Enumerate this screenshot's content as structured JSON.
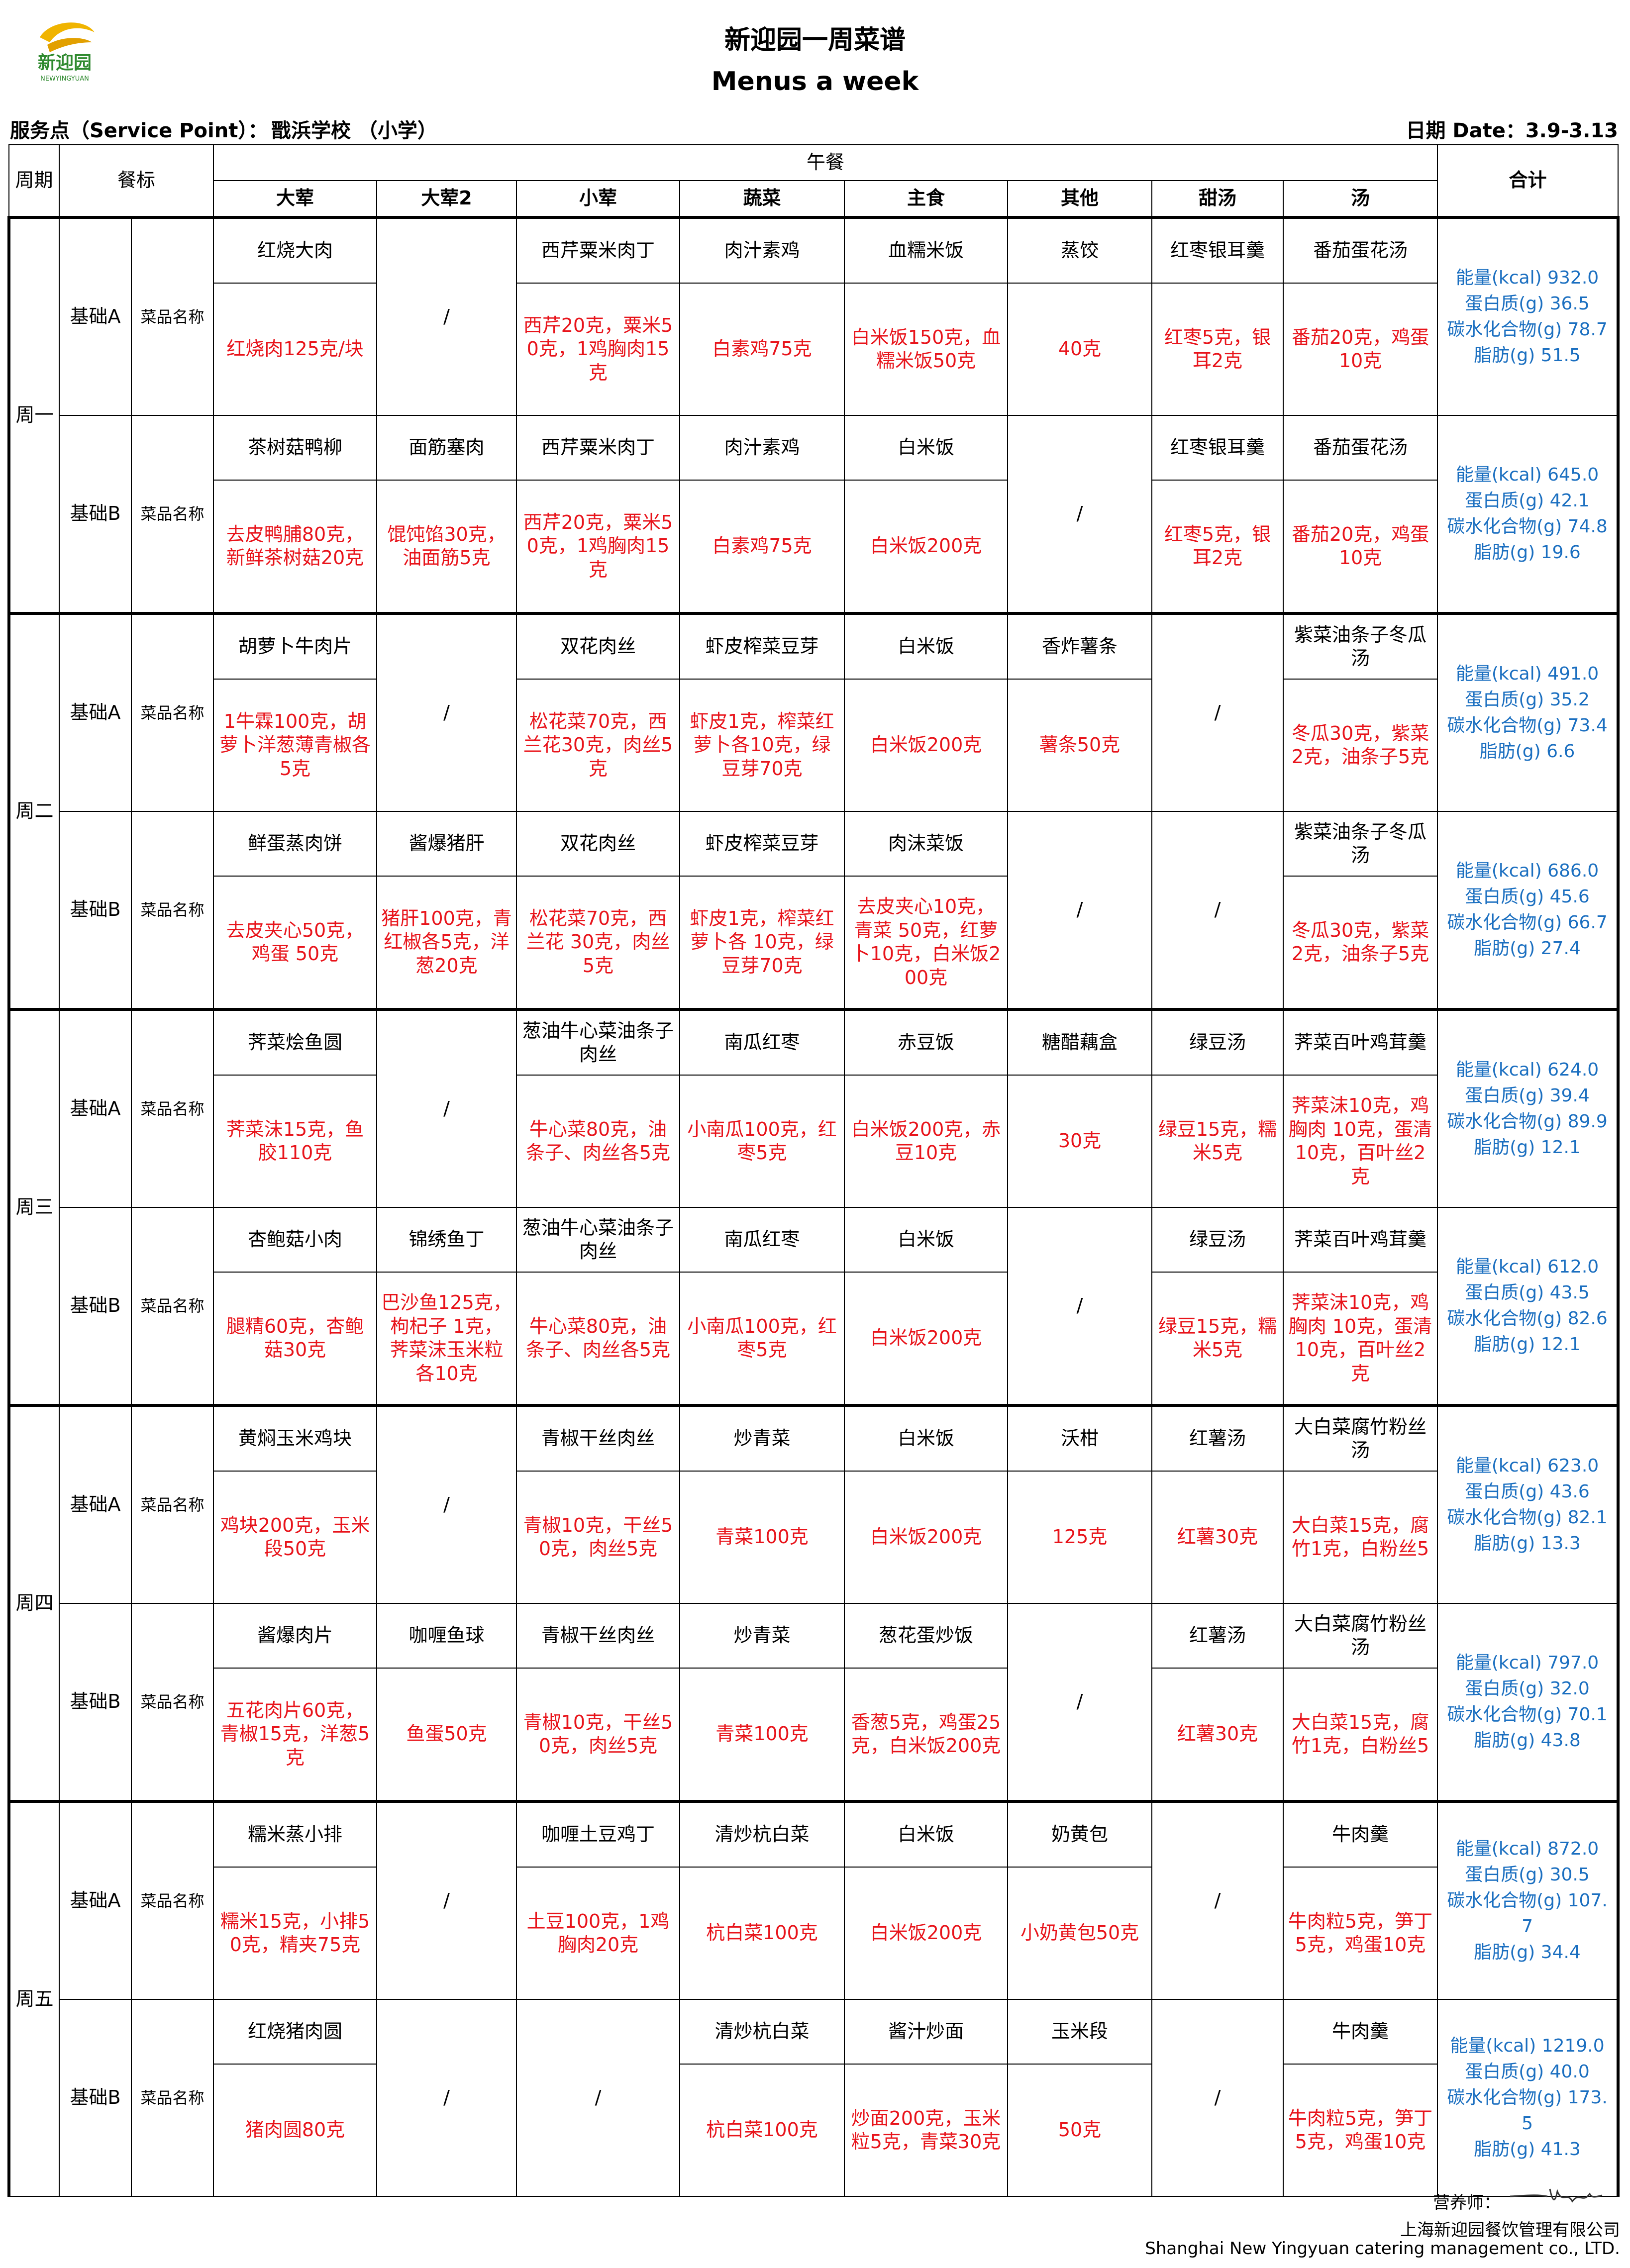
{
  "header": {
    "logo_cn": "新迎园",
    "logo_en": "NEWYINGYUAN",
    "title": "新迎园一周菜谱",
    "subtitle": "Menus a week",
    "service_point_label": "服务点（Service Point）：",
    "school": "戬浜学校 （小学）",
    "date": "日期 Date：3.9-3.13"
  },
  "table": {
    "period": "周期",
    "meal_standard": "餐标",
    "lunch": "午餐",
    "total": "合计",
    "columns": [
      "大荤",
      "大荤2",
      "小荤",
      "蔬菜",
      "主食",
      "其他",
      "甜汤",
      "汤"
    ],
    "days": [
      {
        "day": "周一",
        "meals": [
          {
            "name": "基础A",
            "label": "菜品名称",
            "dishes": [
              "红烧大肉",
              "/",
              "西芹粟米肉丁",
              "肉汁素鸡",
              "血糯米饭",
              "蒸饺",
              "红枣银耳羹",
              "番茄蛋花汤"
            ],
            "ingredients": [
              "红烧肉125克/块",
              null,
              "西芹20克，粟米50克，1鸡胸肉15克",
              "白素鸡75克",
              "白米饭150克，血糯米饭50克",
              "40克",
              "红枣5克，银耳2克",
              "番茄20克，鸡蛋10克"
            ],
            "nutrition": [
              "能量(kcal) 932.0",
              "蛋白质(g) 36.5",
              "碳水化合物(g) 78.7",
              "脂肪(g) 51.5"
            ]
          },
          {
            "name": "基础B",
            "label": "菜品名称",
            "dishes": [
              "茶树菇鸭柳",
              "面筋塞肉",
              "西芹粟米肉丁",
              "肉汁素鸡",
              "白米饭",
              "/",
              "红枣银耳羹",
              "番茄蛋花汤"
            ],
            "ingredients": [
              "去皮鸭脯80克，新鲜茶树菇20克",
              "馄饨馅30克，油面筋5克",
              "西芹20克，粟米50克，1鸡胸肉15克",
              "白素鸡75克",
              "白米饭200克",
              null,
              "红枣5克，银耳2克",
              "番茄20克，鸡蛋10克"
            ],
            "nutrition": [
              "能量(kcal) 645.0",
              "蛋白质(g) 42.1",
              "碳水化合物(g) 74.8",
              "脂肪(g) 19.6"
            ]
          }
        ]
      },
      {
        "day": "周二",
        "meals": [
          {
            "name": "基础A",
            "label": "菜品名称",
            "dishes": [
              "胡萝卜牛肉片",
              "/",
              "双花肉丝",
              "虾皮榨菜豆芽",
              "白米饭",
              "香炸薯条",
              "/",
              "紫菜油条子冬瓜汤"
            ],
            "ingredients": [
              "1牛霖100克，胡萝卜洋葱薄青椒各5克",
              null,
              "松花菜70克，西兰花30克，肉丝5克",
              "虾皮1克，榨菜红萝卜各10克，绿豆芽70克",
              "白米饭200克",
              "薯条50克",
              null,
              "冬瓜30克，紫菜2克，油条子5克"
            ],
            "nutrition": [
              "能量(kcal) 491.0",
              "蛋白质(g) 35.2",
              "碳水化合物(g) 73.4",
              "脂肪(g) 6.6"
            ]
          },
          {
            "name": "基础B",
            "label": "菜品名称",
            "dishes": [
              "鲜蛋蒸肉饼",
              "酱爆猪肝",
              "双花肉丝",
              "虾皮榨菜豆芽",
              "肉沫菜饭",
              "/",
              "/",
              "紫菜油条子冬瓜汤"
            ],
            "ingredients": [
              "去皮夹心50克，鸡蛋 50克",
              "猪肝100克，青红椒各5克，洋葱20克",
              "松花菜70克，西兰花 30克，肉丝5克",
              "虾皮1克，榨菜红萝卜各 10克，绿豆芽70克",
              "去皮夹心10克，青菜 50克，红萝卜10克，白米饭200克",
              null,
              null,
              "冬瓜30克，紫菜2克，油条子5克"
            ],
            "nutrition": [
              "能量(kcal) 686.0",
              "蛋白质(g) 45.6",
              "碳水化合物(g) 66.7",
              "脂肪(g) 27.4"
            ]
          }
        ]
      },
      {
        "day": "周三",
        "meals": [
          {
            "name": "基础A",
            "label": "菜品名称",
            "dishes": [
              "荠菜烩鱼圆",
              "/",
              "葱油牛心菜油条子肉丝",
              "南瓜红枣",
              "赤豆饭",
              "糖醋藕盒",
              "绿豆汤",
              "荠菜百叶鸡茸羹"
            ],
            "ingredients": [
              "荠菜沫15克，鱼胶110克",
              null,
              "牛心菜80克，油条子、肉丝各5克",
              "小南瓜100克，红枣5克",
              "白米饭200克，赤豆10克",
              "30克",
              "绿豆15克，糯米5克",
              "荠菜沫10克，鸡胸肉 10克，蛋清10克，百叶丝2克"
            ],
            "nutrition": [
              "能量(kcal) 624.0",
              "蛋白质(g) 39.4",
              "碳水化合物(g) 89.9",
              "脂肪(g) 12.1"
            ]
          },
          {
            "name": "基础B",
            "label": "菜品名称",
            "dishes": [
              "杏鲍菇小肉",
              "锦绣鱼丁",
              "葱油牛心菜油条子肉丝",
              "南瓜红枣",
              "白米饭",
              "/",
              "绿豆汤",
              "荠菜百叶鸡茸羹"
            ],
            "ingredients": [
              "腿精60克，杏鲍菇30克",
              "巴沙鱼125克，枸杞子 1克，荠菜沫玉米粒各10克",
              "牛心菜80克，油条子、肉丝各5克",
              "小南瓜100克，红枣5克",
              "白米饭200克",
              null,
              "绿豆15克，糯米5克",
              "荠菜沫10克，鸡胸肉 10克，蛋清10克，百叶丝2克"
            ],
            "nutrition": [
              "能量(kcal) 612.0",
              "蛋白质(g) 43.5",
              "碳水化合物(g) 82.6",
              "脂肪(g) 12.1"
            ]
          }
        ]
      },
      {
        "day": "周四",
        "meals": [
          {
            "name": "基础A",
            "label": "菜品名称",
            "dishes": [
              "黄焖玉米鸡块",
              "/",
              "青椒干丝肉丝",
              "炒青菜",
              "白米饭",
              "沃柑",
              "红薯汤",
              "大白菜腐竹粉丝汤"
            ],
            "ingredients": [
              "鸡块200克，玉米段50克",
              null,
              "青椒10克，干丝50克，肉丝5克",
              "青菜100克",
              "白米饭200克",
              "125克",
              "红薯30克",
              "大白菜15克，腐竹1克，白粉丝5"
            ],
            "nutrition": [
              "能量(kcal) 623.0",
              "蛋白质(g) 43.6",
              "碳水化合物(g) 82.1",
              "脂肪(g) 13.3"
            ]
          },
          {
            "name": "基础B",
            "label": "菜品名称",
            "dishes": [
              "酱爆肉片",
              "咖喱鱼球",
              "青椒干丝肉丝",
              "炒青菜",
              "葱花蛋炒饭",
              "/",
              "红薯汤",
              "大白菜腐竹粉丝汤"
            ],
            "ingredients": [
              "五花肉片60克，青椒15克，洋葱5克",
              "鱼蛋50克",
              "青椒10克，干丝50克，肉丝5克",
              "青菜100克",
              "香葱5克，鸡蛋25克，白米饭200克",
              null,
              "红薯30克",
              "大白菜15克，腐竹1克，白粉丝5"
            ],
            "nutrition": [
              "能量(kcal) 797.0",
              "蛋白质(g) 32.0",
              "碳水化合物(g) 70.1",
              "脂肪(g) 43.8"
            ]
          }
        ]
      },
      {
        "day": "周五",
        "meals": [
          {
            "name": "基础A",
            "label": "菜品名称",
            "dishes": [
              "糯米蒸小排",
              "/",
              "咖喱土豆鸡丁",
              "清炒杭白菜",
              "白米饭",
              "奶黄包",
              "/",
              "牛肉羹"
            ],
            "ingredients": [
              "糯米15克，小排50克，精夹75克",
              null,
              "土豆100克，1鸡胸肉20克",
              "杭白菜100克",
              "白米饭200克",
              "小奶黄包50克",
              null,
              "牛肉粒5克，笋丁5克，鸡蛋10克"
            ],
            "nutrition": [
              "能量(kcal) 872.0",
              "蛋白质(g) 30.5",
              "碳水化合物(g) 107.7",
              "脂肪(g) 34.4"
            ]
          },
          {
            "name": "基础B",
            "label": "菜品名称",
            "dishes": [
              "红烧猪肉圆",
              "/",
              "/",
              "清炒杭白菜",
              "酱汁炒面",
              "玉米段",
              "/",
              "牛肉羹"
            ],
            "ingredients": [
              "猪肉圆80克",
              null,
              null,
              "杭白菜100克",
              "炒面200克，玉米粒5克，青菜30克",
              "50克",
              null,
              "牛肉粒5克，笋丁5克，鸡蛋10克"
            ],
            "nutrition": [
              "能量(kcal) 1219.0",
              "蛋白质(g) 40.0",
              "碳水化合物(g) 173.5",
              "脂肪(g) 41.3"
            ]
          }
        ]
      }
    ]
  },
  "footer": {
    "dietitian": "营养师：",
    "company_cn": "上海新迎园餐饮管理有限公司",
    "company_en": "Shanghai New Yingyuan catering management co., LTD."
  }
}
